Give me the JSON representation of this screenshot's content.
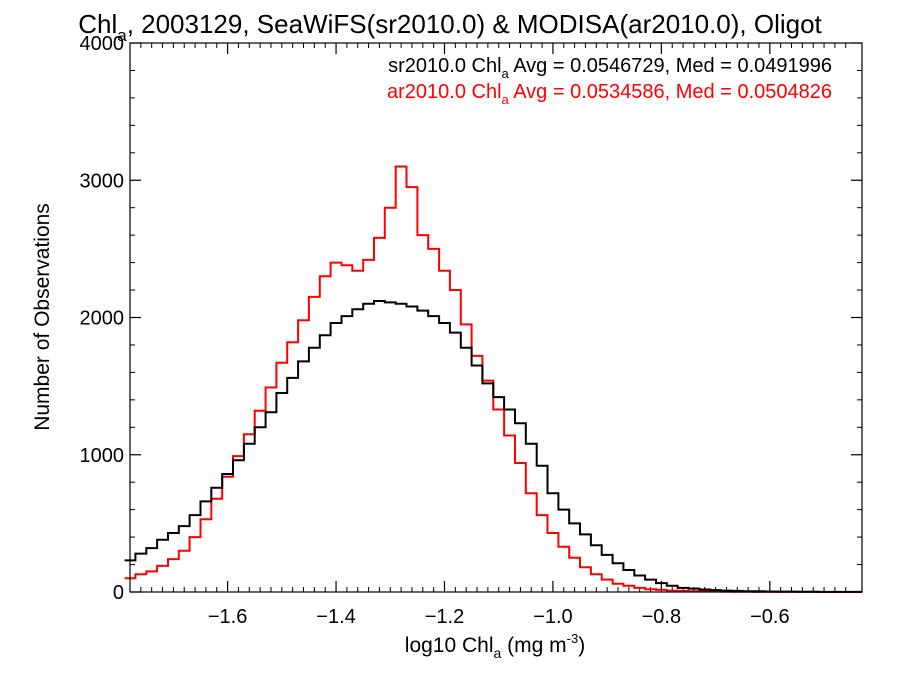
{
  "chart_data": {
    "type": "line",
    "title": {
      "pre": "Chl",
      "sub": "a",
      "post": ", 2003129, SeaWiFS(sr2010.0) & MODISA(ar2010.0), Oligot"
    },
    "xlabel": {
      "pre": "log10 Chl",
      "sub": "a",
      "post": " (mg m",
      "sup": "-3",
      "end": ")"
    },
    "ylabel": "Number of Observations",
    "xlim": [
      -1.78,
      -0.43
    ],
    "ylim": [
      0,
      4000
    ],
    "x_ticks": [
      -1.6,
      -1.4,
      -1.2,
      -1.0,
      -0.8,
      -0.6
    ],
    "x_tick_labels": [
      "−1.6",
      "−1.4",
      "−1.2",
      "−1.0",
      "−0.8",
      "−0.6"
    ],
    "y_ticks": [
      0,
      1000,
      2000,
      3000,
      4000
    ],
    "y_tick_labels": [
      "0",
      "1000",
      "2000",
      "3000",
      "4000"
    ],
    "legend": [
      {
        "pre": "sr2010.0 Chl",
        "sub": "a",
        "post": " Avg = 0.0546729, Med = 0.0491996",
        "color": "#000000"
      },
      {
        "pre": "ar2010.0 Chl",
        "sub": "a",
        "post": " Avg = 0.0534586, Med = 0.0504826",
        "color": "#ff0000"
      }
    ],
    "legend_placement": "top-right",
    "grid": false,
    "series": [
      {
        "color": "#000000",
        "x": [
          -1.78,
          -1.76,
          -1.74,
          -1.72,
          -1.7,
          -1.68,
          -1.66,
          -1.64,
          -1.62,
          -1.6,
          -1.58,
          -1.56,
          -1.54,
          -1.52,
          -1.5,
          -1.48,
          -1.46,
          -1.44,
          -1.42,
          -1.4,
          -1.38,
          -1.36,
          -1.34,
          -1.32,
          -1.3,
          -1.28,
          -1.26,
          -1.24,
          -1.22,
          -1.2,
          -1.18,
          -1.16,
          -1.14,
          -1.12,
          -1.1,
          -1.08,
          -1.06,
          -1.04,
          -1.02,
          -1.0,
          -0.98,
          -0.96,
          -0.94,
          -0.92,
          -0.9,
          -0.88,
          -0.86,
          -0.84,
          -0.82,
          -0.8,
          -0.78,
          -0.76,
          -0.74,
          -0.72,
          -0.7,
          -0.68,
          -0.66,
          -0.64,
          -0.62,
          -0.6,
          -0.58,
          -0.56,
          -0.54,
          -0.52,
          -0.5,
          -0.48,
          -0.46,
          -0.44
        ],
        "y": [
          230,
          280,
          320,
          380,
          430,
          480,
          560,
          660,
          760,
          860,
          960,
          1080,
          1200,
          1310,
          1450,
          1560,
          1680,
          1780,
          1870,
          1960,
          2010,
          2060,
          2100,
          2120,
          2110,
          2100,
          2080,
          2050,
          2010,
          1960,
          1890,
          1780,
          1650,
          1520,
          1420,
          1330,
          1230,
          1080,
          920,
          720,
          600,
          500,
          420,
          340,
          270,
          210,
          160,
          120,
          90,
          65,
          45,
          30,
          25,
          18,
          14,
          10,
          8,
          6,
          5,
          4,
          3,
          3,
          2,
          2,
          1,
          1,
          1,
          1
        ]
      },
      {
        "color": "#ff0000",
        "x": [
          -1.78,
          -1.76,
          -1.74,
          -1.72,
          -1.7,
          -1.68,
          -1.66,
          -1.64,
          -1.62,
          -1.6,
          -1.58,
          -1.56,
          -1.54,
          -1.52,
          -1.5,
          -1.48,
          -1.46,
          -1.44,
          -1.42,
          -1.4,
          -1.38,
          -1.36,
          -1.34,
          -1.32,
          -1.3,
          -1.28,
          -1.26,
          -1.24,
          -1.22,
          -1.2,
          -1.18,
          -1.16,
          -1.14,
          -1.12,
          -1.1,
          -1.08,
          -1.06,
          -1.04,
          -1.02,
          -1.0,
          -0.98,
          -0.96,
          -0.94,
          -0.92,
          -0.9,
          -0.88,
          -0.86,
          -0.84,
          -0.82,
          -0.8,
          -0.78,
          -0.76,
          -0.74,
          -0.72,
          -0.7,
          -0.68,
          -0.66,
          -0.64,
          -0.62,
          -0.6,
          -0.58,
          -0.56,
          -0.54,
          -0.52,
          -0.5,
          -0.48,
          -0.46,
          -0.44
        ],
        "y": [
          100,
          130,
          150,
          190,
          240,
          300,
          400,
          530,
          680,
          840,
          990,
          1150,
          1320,
          1490,
          1670,
          1820,
          1980,
          2150,
          2300,
          2400,
          2380,
          2340,
          2420,
          2580,
          2800,
          3100,
          2950,
          2600,
          2500,
          2340,
          2200,
          1950,
          1720,
          1540,
          1330,
          1140,
          940,
          720,
          560,
          430,
          330,
          250,
          180,
          130,
          90,
          60,
          45,
          30,
          20,
          15,
          10,
          8,
          6,
          5,
          4,
          3,
          2,
          2,
          1,
          1,
          1,
          1,
          1,
          1,
          0,
          0,
          0,
          0
        ]
      }
    ]
  }
}
